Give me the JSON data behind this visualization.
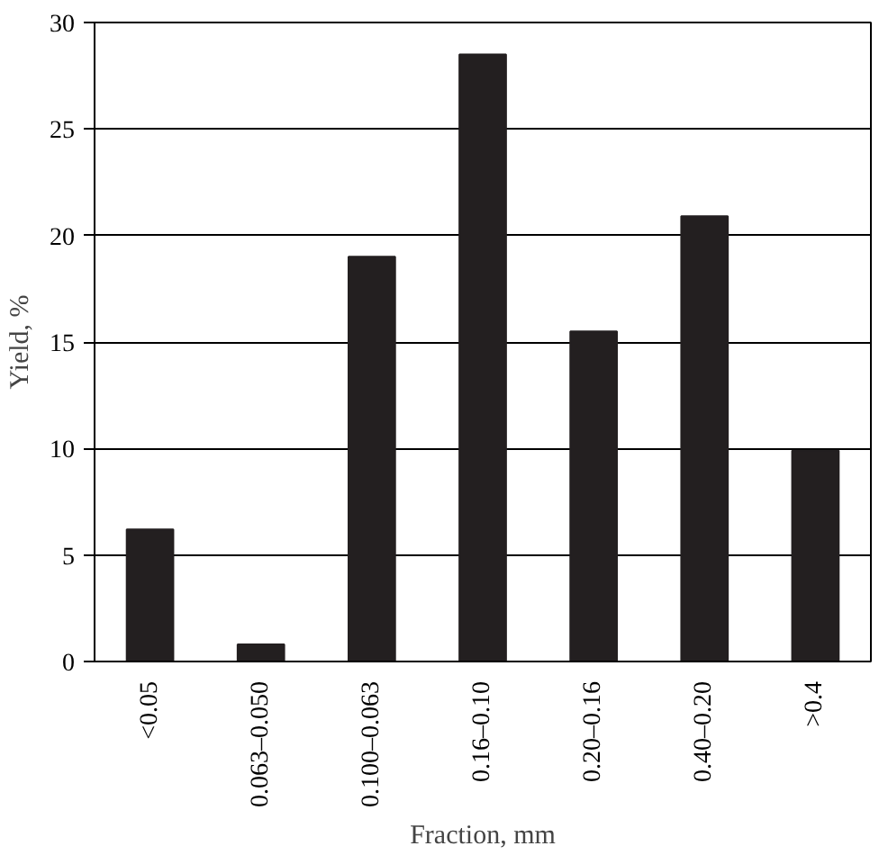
{
  "chart_data": {
    "type": "bar",
    "xlabel": "Fraction, mm",
    "ylabel": "Yield, %",
    "categories": [
      "<0.05",
      "0.063–0.050",
      "0.100–0.063",
      "0.16–0.10",
      "0.20–0.16",
      "0.40–0.20",
      ">0.4"
    ],
    "values": [
      6.2,
      0.8,
      19,
      28.5,
      15.5,
      20.9,
      9.9
    ],
    "color": "#231f20",
    "ylim": [
      0,
      30
    ],
    "yticks": [
      0,
      5,
      10,
      15,
      20,
      25,
      30
    ],
    "grid": "y"
  }
}
